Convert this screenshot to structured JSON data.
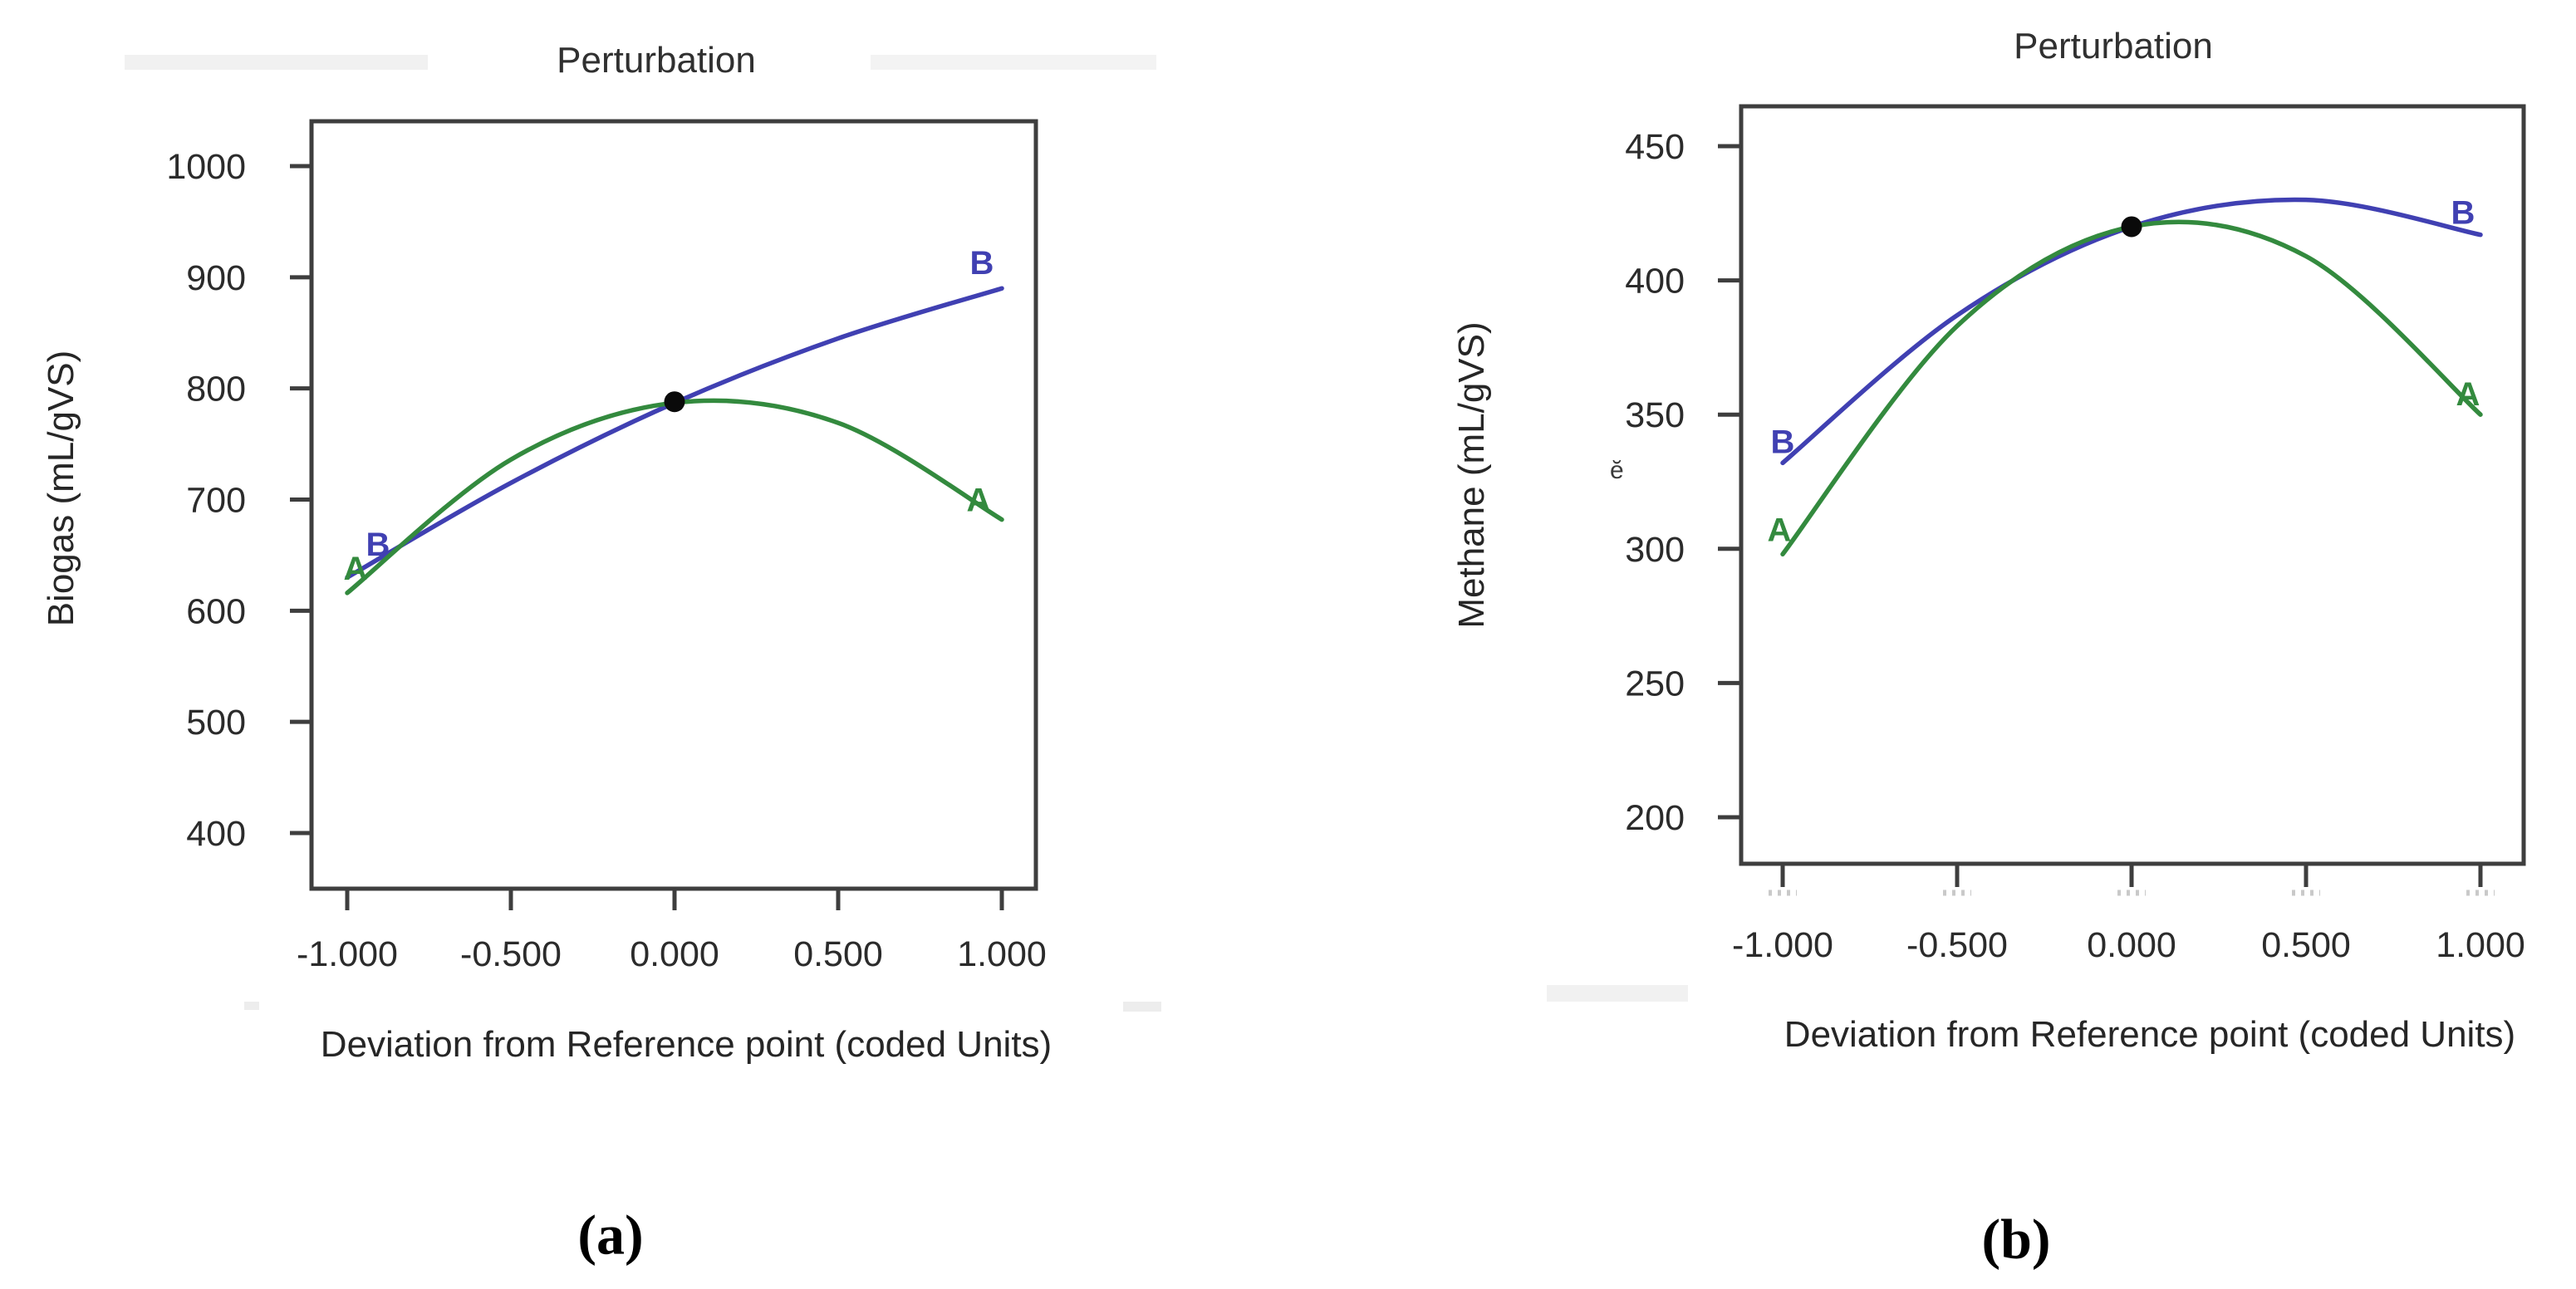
{
  "chart_data": [
    {
      "id": "a",
      "type": "line",
      "title": "Perturbation",
      "xlabel": "Deviation from Reference point (coded Units)",
      "ylabel": "Biogas (mL/gVS)",
      "caption": "(a)",
      "xtick_labels": [
        "-1.000",
        "-0.500",
        "0.000",
        "0.500",
        "1.000"
      ],
      "xtick_values": [
        -1,
        -0.5,
        0,
        0.5,
        1
      ],
      "ytick_labels": [
        "1000",
        "900",
        "800",
        "700",
        "600",
        "500",
        "400"
      ],
      "ytick_values": [
        1000,
        900,
        800,
        700,
        600,
        500,
        400
      ],
      "xlim": [
        -1.11,
        1.21
      ],
      "ylim": [
        350,
        1040
      ],
      "grid": false,
      "legend": "none (series labeled A and B at both curve ends)",
      "series": [
        {
          "name": "B",
          "color": "#4040b2",
          "x": [
            -1,
            -0.5,
            0,
            0.5,
            1
          ],
          "y": [
            630,
            715,
            787,
            845,
            890
          ]
        },
        {
          "name": "A",
          "color": "#338a3e",
          "x": [
            -1,
            -0.5,
            0,
            0.5,
            1
          ],
          "y": [
            616,
            736,
            787,
            769,
            682
          ]
        }
      ],
      "reference_point": {
        "x": 0,
        "y": 788
      }
    },
    {
      "id": "b",
      "type": "line",
      "title": "Perturbation",
      "xlabel": "Deviation from Reference point (coded Units)",
      "ylabel": "Methane (mL/gVS)",
      "caption": "(b)",
      "xtick_labels": [
        "-1.000",
        "-0.500",
        "0.000",
        "0.500",
        "1.000"
      ],
      "xtick_values": [
        -1,
        -0.5,
        0,
        0.5,
        1
      ],
      "ytick_labels": [
        "450",
        "400",
        "350",
        "300",
        "250",
        "200"
      ],
      "ytick_values": [
        450,
        400,
        350,
        300,
        250,
        200
      ],
      "xlim": [
        -1.12,
        1.13
      ],
      "ylim": [
        185,
        465
      ],
      "grid": false,
      "legend": "none (series labeled A and B at both curve ends)",
      "series": [
        {
          "name": "B",
          "color": "#4040b2",
          "x": [
            -1,
            -0.5,
            0,
            0.5,
            1
          ],
          "y": [
            332,
            387,
            420,
            430,
            417
          ]
        },
        {
          "name": "A",
          "color": "#338a3e",
          "x": [
            -1,
            -0.5,
            0,
            0.5,
            1
          ],
          "y": [
            298,
            383,
            420,
            409,
            350
          ]
        }
      ],
      "reference_point": {
        "x": 0,
        "y": 420
      }
    }
  ],
  "artifacts": {
    "stray_glyph": "ĕ"
  }
}
